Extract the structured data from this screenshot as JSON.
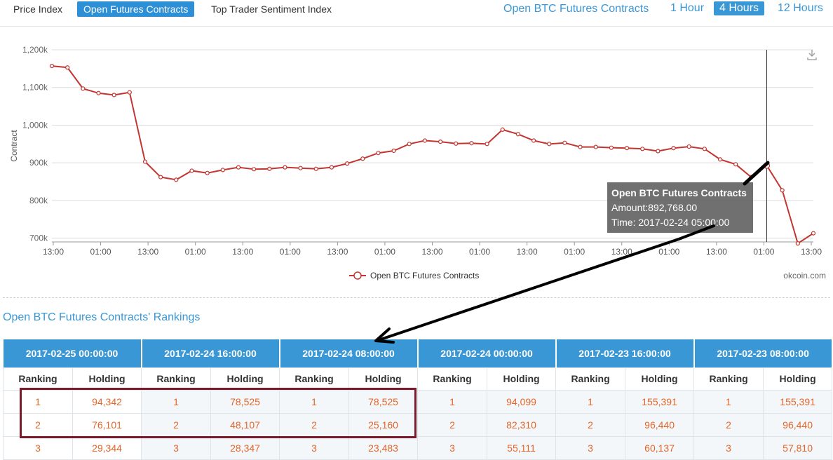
{
  "tabs": [
    {
      "label": "Price Index",
      "active": false
    },
    {
      "label": "Open Futures Contracts",
      "active": true
    },
    {
      "label": "Top Trader Sentiment Index",
      "active": false
    }
  ],
  "period": {
    "title": "Open BTC Futures Contracts",
    "options": [
      {
        "label": "1 Hour",
        "active": false
      },
      {
        "label": "4 Hours",
        "active": true
      },
      {
        "label": "12 Hours",
        "active": false
      }
    ]
  },
  "chart_data": {
    "type": "line",
    "title": "",
    "xlabel": "",
    "ylabel": "Contract",
    "ylim": [
      690000,
      1200000
    ],
    "yticks": [
      700000,
      800000,
      900000,
      1000000,
      1100000,
      1200000
    ],
    "ytick_labels": [
      "700k",
      "800k",
      "900k",
      "1,000k",
      "1,100k",
      "1,200k"
    ],
    "xtick_labels": [
      "13:00",
      "01:00",
      "13:00",
      "01:00",
      "13:00",
      "01:00",
      "13:00",
      "01:00",
      "13:00",
      "01:00",
      "13:00",
      "01:00",
      "13:00",
      "01:00",
      "13:00",
      "01:00",
      "13:00"
    ],
    "grid": true,
    "legend": "bottom-center",
    "series": [
      {
        "name": "Open BTC Futures Contracts",
        "color": "#c23531",
        "values": [
          1157000,
          1153000,
          1097000,
          1085000,
          1080000,
          1087000,
          903000,
          862000,
          855000,
          879000,
          873000,
          881000,
          888000,
          883000,
          884000,
          888000,
          886000,
          884000,
          888000,
          898000,
          911000,
          926000,
          932000,
          950000,
          959000,
          956000,
          951000,
          952000,
          950000,
          988000,
          976000,
          959000,
          950000,
          953000,
          942000,
          942000,
          940000,
          939000,
          937000,
          931000,
          939000,
          943000,
          937000,
          909000,
          896000,
          862000,
          892768,
          827000,
          686000,
          713000
        ]
      }
    ],
    "highlight_index": 46,
    "credit": "okcoin.com"
  },
  "tooltip": {
    "title": "Open BTC Futures Contracts",
    "amount": "Amount:892,768.00",
    "time": "Time: 2017-02-24 05:00:00"
  },
  "rankings": {
    "title": "Open BTC Futures Contracts' Rankings",
    "dates": [
      "2017-02-25 00:00:00",
      "2017-02-24 16:00:00",
      "2017-02-24 08:00:00",
      "2017-02-24 00:00:00",
      "2017-02-23 16:00:00",
      "2017-02-23 08:00:00"
    ],
    "col_ranking": "Ranking",
    "col_holding": "Holding",
    "rows": [
      {
        "ranks": [
          "1",
          "1",
          "1",
          "1",
          "1",
          "1"
        ],
        "holdings": [
          "94,342",
          "78,525",
          "78,525",
          "94,099",
          "155,391",
          "155,391"
        ]
      },
      {
        "ranks": [
          "2",
          "2",
          "2",
          "2",
          "2",
          "2"
        ],
        "holdings": [
          "76,101",
          "48,107",
          "25,160",
          "82,310",
          "96,440",
          "96,440"
        ]
      },
      {
        "ranks": [
          "3",
          "3",
          "3",
          "3",
          "3",
          "3"
        ],
        "holdings": [
          "29,344",
          "28,347",
          "23,483",
          "55,111",
          "60,137",
          "57,810"
        ]
      }
    ]
  }
}
